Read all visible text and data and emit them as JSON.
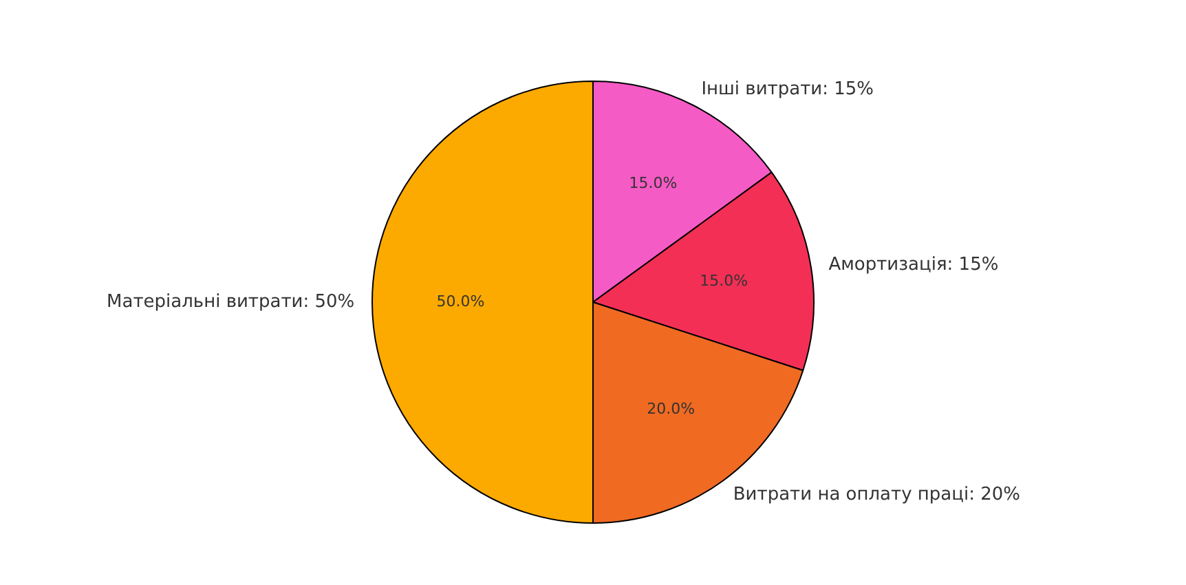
{
  "chart_data": {
    "type": "pie",
    "categories": [
      "Інші витрати: 15%",
      "Амортизація: 15%",
      "Витрати на оплату праці: 20%",
      "Матеріальні витрати: 50%"
    ],
    "values": [
      15,
      15,
      20,
      50
    ],
    "colors": [
      "#f55bc4",
      "#f32f55",
      "#f06a22",
      "#fdaa00"
    ],
    "value_labels": [
      "15.0%",
      "15.0%",
      "20.0%",
      "50.0%"
    ],
    "legend": false
  }
}
